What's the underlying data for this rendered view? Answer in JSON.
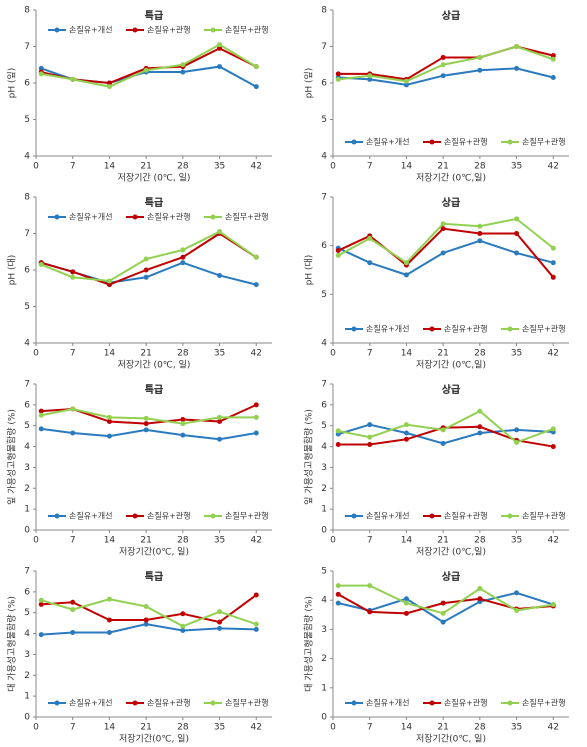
{
  "chart_data": [
    {
      "type": "line",
      "title": "특급",
      "x_label": "저장기간 (0℃, 일)",
      "y_label": "pH (잎)",
      "x": [
        1,
        7,
        14,
        21,
        28,
        35,
        42
      ],
      "xlim": [
        0,
        45
      ],
      "xticks": [
        0,
        7,
        14,
        21,
        28,
        35,
        42
      ],
      "ylim": [
        4,
        8
      ],
      "yticks": [
        4,
        5,
        6,
        7,
        8
      ],
      "legend_position": "top",
      "series": [
        {
          "name": "손질유+개선",
          "color": "#2a7ac0",
          "values": [
            6.4,
            6.1,
            6.0,
            6.3,
            6.3,
            6.45,
            5.9
          ]
        },
        {
          "name": "손질유+관행",
          "color": "#c00000",
          "values": [
            6.3,
            6.1,
            6.0,
            6.4,
            6.45,
            6.95,
            6.45
          ]
        },
        {
          "name": "손질무+관행",
          "color": "#92d050",
          "values": [
            6.25,
            6.1,
            5.9,
            6.35,
            6.5,
            7.05,
            6.45
          ]
        }
      ]
    },
    {
      "type": "line",
      "title": "상급",
      "x_label": "저장기간 (0℃,일)",
      "y_label": "pH (잎)",
      "x": [
        1,
        7,
        14,
        21,
        28,
        35,
        42
      ],
      "xlim": [
        0,
        45
      ],
      "xticks": [
        0,
        7,
        14,
        21,
        28,
        35,
        42
      ],
      "ylim": [
        4,
        8
      ],
      "yticks": [
        4,
        5,
        6,
        7,
        8
      ],
      "legend_position": "bottom",
      "series": [
        {
          "name": "손질유+개선",
          "color": "#2a7ac0",
          "values": [
            6.15,
            6.1,
            5.95,
            6.2,
            6.35,
            6.4,
            6.15
          ]
        },
        {
          "name": "손질유+관행",
          "color": "#c00000",
          "values": [
            6.25,
            6.25,
            6.1,
            6.7,
            6.7,
            7.0,
            6.75
          ]
        },
        {
          "name": "손질무+관행",
          "color": "#92d050",
          "values": [
            6.1,
            6.2,
            6.05,
            6.5,
            6.7,
            7.0,
            6.65
          ]
        }
      ]
    },
    {
      "type": "line",
      "title": "특급",
      "x_label": "저장기간 (0℃, 일)",
      "y_label": "pH (대)",
      "x": [
        1,
        7,
        14,
        21,
        28,
        35,
        42
      ],
      "xlim": [
        0,
        45
      ],
      "xticks": [
        0,
        7,
        14,
        21,
        28,
        35,
        42
      ],
      "ylim": [
        4,
        8
      ],
      "yticks": [
        4,
        5,
        6,
        7,
        8
      ],
      "legend_position": "top",
      "series": [
        {
          "name": "손질유+개선",
          "color": "#2a7ac0",
          "values": [
            6.2,
            5.95,
            5.65,
            5.8,
            6.2,
            5.85,
            5.6
          ]
        },
        {
          "name": "손질유+관행",
          "color": "#c00000",
          "values": [
            6.2,
            5.95,
            5.6,
            6.0,
            6.35,
            7.0,
            6.35
          ]
        },
        {
          "name": "손질무+관행",
          "color": "#92d050",
          "values": [
            6.15,
            5.8,
            5.7,
            6.3,
            6.55,
            7.05,
            6.35
          ]
        }
      ]
    },
    {
      "type": "line",
      "title": "상급",
      "x_label": "저장기간 (0℃,일)",
      "y_label": "pH (대)",
      "x": [
        1,
        7,
        14,
        21,
        28,
        35,
        42
      ],
      "xlim": [
        0,
        45
      ],
      "xticks": [
        0,
        7,
        14,
        21,
        28,
        35,
        42
      ],
      "ylim": [
        4,
        7
      ],
      "yticks": [
        4,
        5,
        6,
        7
      ],
      "legend_position": "bottom",
      "series": [
        {
          "name": "손질유+개선",
          "color": "#2a7ac0",
          "values": [
            5.95,
            5.65,
            5.4,
            5.85,
            6.1,
            5.85,
            5.65
          ]
        },
        {
          "name": "손질유+관행",
          "color": "#c00000",
          "values": [
            5.9,
            6.2,
            5.6,
            6.35,
            6.25,
            6.25,
            5.35
          ]
        },
        {
          "name": "손질무+관행",
          "color": "#92d050",
          "values": [
            5.8,
            6.15,
            5.65,
            6.45,
            6.4,
            6.55,
            5.95
          ]
        }
      ]
    },
    {
      "type": "line",
      "title": "특급",
      "x_label": "저장기간(0℃, 일)",
      "y_label": "잎 가용성고형물함량 (%)",
      "x": [
        1,
        7,
        14,
        21,
        28,
        35,
        42
      ],
      "xlim": [
        0,
        45
      ],
      "xticks": [
        0,
        7,
        14,
        21,
        28,
        35,
        42
      ],
      "ylim": [
        0,
        7
      ],
      "yticks": [
        0,
        1,
        2,
        3,
        4,
        5,
        6,
        7
      ],
      "legend_position": "bottom",
      "series": [
        {
          "name": "손질유+개선",
          "color": "#2a7ac0",
          "values": [
            4.85,
            4.65,
            4.5,
            4.8,
            4.55,
            4.35,
            4.65
          ]
        },
        {
          "name": "손질유+관행",
          "color": "#c00000",
          "values": [
            5.7,
            5.8,
            5.2,
            5.1,
            5.3,
            5.2,
            6.0
          ]
        },
        {
          "name": "손질무+관행",
          "color": "#92d050",
          "values": [
            5.5,
            5.8,
            5.4,
            5.35,
            5.1,
            5.4,
            5.4
          ]
        }
      ]
    },
    {
      "type": "line",
      "title": "상급",
      "x_label": "저장기간 (0℃,일)",
      "y_label": "잎 가용성고형물함량 (%)",
      "x": [
        1,
        7,
        14,
        21,
        28,
        35,
        42
      ],
      "xlim": [
        0,
        45
      ],
      "xticks": [
        0,
        7,
        14,
        21,
        28,
        35,
        42
      ],
      "ylim": [
        0,
        7
      ],
      "yticks": [
        0,
        1,
        2,
        3,
        4,
        5,
        6,
        7
      ],
      "legend_position": "bottom",
      "series": [
        {
          "name": "손질유+개선",
          "color": "#2a7ac0",
          "values": [
            4.6,
            5.05,
            4.65,
            4.15,
            4.65,
            4.8,
            4.7
          ]
        },
        {
          "name": "손질유+관행",
          "color": "#c00000",
          "values": [
            4.1,
            4.1,
            4.35,
            4.9,
            4.95,
            4.3,
            4.0
          ]
        },
        {
          "name": "손질무+관행",
          "color": "#92d050",
          "values": [
            4.75,
            4.45,
            5.05,
            4.8,
            5.7,
            4.2,
            4.85
          ]
        }
      ]
    },
    {
      "type": "line",
      "title": "특급",
      "x_label": "저장기간(0℃, 일)",
      "y_label": "대 가용성고형물함량 (%)",
      "x": [
        1,
        7,
        14,
        21,
        28,
        35,
        42
      ],
      "xlim": [
        0,
        45
      ],
      "xticks": [
        0,
        7,
        14,
        21,
        28,
        35,
        42
      ],
      "ylim": [
        0,
        7
      ],
      "yticks": [
        0,
        1,
        2,
        3,
        4,
        5,
        6,
        7
      ],
      "legend_position": "bottom",
      "series": [
        {
          "name": "손질유+개선",
          "color": "#2a7ac0",
          "values": [
            3.95,
            4.05,
            4.05,
            4.45,
            4.15,
            4.25,
            4.2
          ]
        },
        {
          "name": "손질유+관행",
          "color": "#c00000",
          "values": [
            5.4,
            5.5,
            4.65,
            4.65,
            4.95,
            4.55,
            5.85
          ]
        },
        {
          "name": "손질무+관행",
          "color": "#92d050",
          "values": [
            5.6,
            5.15,
            5.65,
            5.3,
            4.35,
            5.05,
            4.45
          ]
        }
      ]
    },
    {
      "type": "line",
      "title": "상급",
      "x_label": "저장기간(0℃, 일)",
      "y_label": "대 가용성고형물함량 (%)",
      "x": [
        1,
        7,
        14,
        21,
        28,
        35,
        42
      ],
      "xlim": [
        0,
        45
      ],
      "xticks": [
        0,
        7,
        14,
        21,
        28,
        35,
        42
      ],
      "ylim": [
        0,
        5
      ],
      "yticks": [
        0,
        1,
        2,
        3,
        4,
        5
      ],
      "legend_position": "bottom",
      "series": [
        {
          "name": "손질유+개선",
          "color": "#2a7ac0",
          "values": [
            3.9,
            3.65,
            4.05,
            3.25,
            3.95,
            4.25,
            3.85
          ]
        },
        {
          "name": "손질유+관행",
          "color": "#c00000",
          "values": [
            4.2,
            3.6,
            3.55,
            3.9,
            4.05,
            3.7,
            3.8
          ]
        },
        {
          "name": "손질무+관행",
          "color": "#92d050",
          "values": [
            4.5,
            4.5,
            3.9,
            3.55,
            4.4,
            3.65,
            3.85
          ]
        }
      ]
    }
  ]
}
